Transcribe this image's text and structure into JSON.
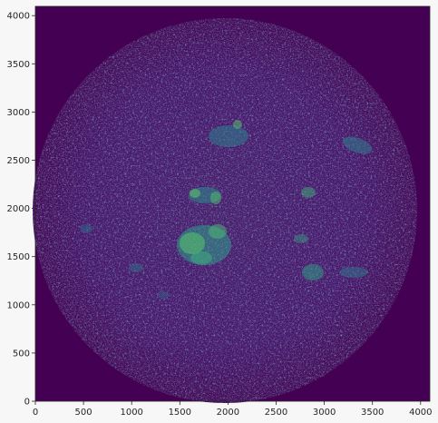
{
  "image": {
    "description_colormap": "viridis",
    "background_color": "#440154",
    "x_ticks": [
      "0",
      "500",
      "1000",
      "1500",
      "2000",
      "2500",
      "3000",
      "3500",
      "4000"
    ],
    "y_ticks": [
      "0",
      "500",
      "1000",
      "1500",
      "2000",
      "2500",
      "3000",
      "3500",
      "4000"
    ],
    "axis_range": {
      "x": [
        0,
        4096
      ],
      "y": [
        0,
        4096
      ]
    }
  }
}
